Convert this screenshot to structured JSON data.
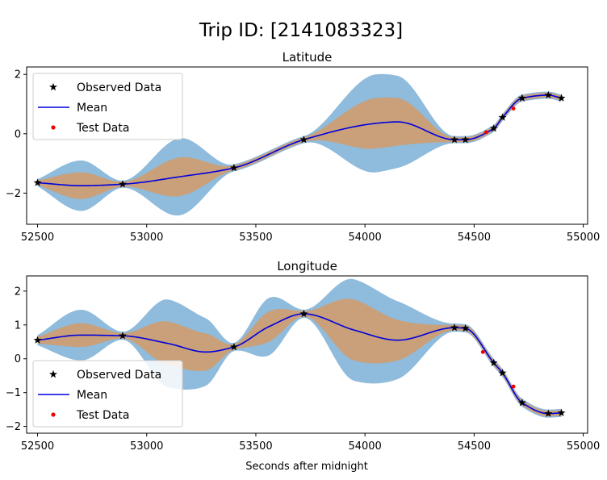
{
  "chart_data": {
    "suptitle": "Trip ID: [2141083323]",
    "xlabel": "Seconds after midnight",
    "colors": {
      "band_outer": "#8fbbdc",
      "band_inner": "#c9a07a",
      "mean": "#0000dd",
      "observed": "#000000",
      "test": "#ee0000"
    },
    "legend": {
      "observed": "Observed Data",
      "mean": "Mean",
      "test": "Test Data"
    },
    "charts": [
      {
        "type": "line",
        "title": "Latitude",
        "xlim": [
          52450,
          55020
        ],
        "ylim": [
          -3.05,
          2.25
        ],
        "xticks": [
          52500,
          53000,
          53500,
          54000,
          54500,
          55000
        ],
        "yticks": [
          -2,
          0,
          2
        ],
        "legend_position": "top-left",
        "x": [
          52500,
          52700,
          52890,
          53150,
          53400,
          53720,
          54050,
          54150,
          54410,
          54460,
          54590,
          54630,
          54720,
          54840,
          54900
        ],
        "mean": [
          -1.65,
          -1.75,
          -1.7,
          -1.45,
          -1.15,
          -0.2,
          0.35,
          0.4,
          -0.2,
          -0.2,
          0.18,
          0.55,
          1.2,
          1.3,
          1.2
        ],
        "inner_halfwidth": [
          0.08,
          0.45,
          0.08,
          0.65,
          0.08,
          0.08,
          0.85,
          0.8,
          0.08,
          0.08,
          0.08,
          0.08,
          0.08,
          0.08,
          0.08
        ],
        "outer_halfwidth": [
          0.12,
          0.85,
          0.12,
          1.3,
          0.12,
          0.12,
          1.65,
          1.55,
          0.12,
          0.12,
          0.12,
          0.12,
          0.12,
          0.12,
          0.12
        ],
        "observed_x": [
          52500,
          52890,
          53400,
          53720,
          54410,
          54460,
          54590,
          54630,
          54720,
          54840,
          54900
        ],
        "observed_y": [
          -1.65,
          -1.7,
          -1.15,
          -0.2,
          -0.2,
          -0.2,
          0.18,
          0.55,
          1.2,
          1.3,
          1.2
        ],
        "test_x": [
          54555,
          54680
        ],
        "test_y": [
          0.05,
          0.85
        ]
      },
      {
        "type": "line",
        "title": "Longitude",
        "xlim": [
          52450,
          55020
        ],
        "ylim": [
          -2.2,
          2.45
        ],
        "xticks": [
          52500,
          53000,
          53500,
          54000,
          54500,
          55000
        ],
        "yticks": [
          -2,
          -1,
          0,
          1,
          2
        ],
        "legend_position": "bottom-left",
        "x": [
          52500,
          52700,
          52890,
          53100,
          53270,
          53400,
          53560,
          53720,
          53950,
          54150,
          54410,
          54460,
          54590,
          54630,
          54720,
          54840,
          54900
        ],
        "mean": [
          0.55,
          0.7,
          0.68,
          0.45,
          0.2,
          0.35,
          0.95,
          1.33,
          0.85,
          0.55,
          0.92,
          0.9,
          -0.12,
          -0.42,
          -1.3,
          -1.62,
          -1.6
        ],
        "inner_halfwidth": [
          0.1,
          0.35,
          0.08,
          0.65,
          0.55,
          0.08,
          0.45,
          0.08,
          0.9,
          0.6,
          0.08,
          0.08,
          0.08,
          0.08,
          0.08,
          0.08,
          0.08
        ],
        "outer_halfwidth": [
          0.15,
          0.75,
          0.12,
          1.3,
          1.0,
          0.12,
          0.85,
          0.12,
          1.5,
          1.15,
          0.12,
          0.12,
          0.12,
          0.12,
          0.12,
          0.12,
          0.12
        ],
        "observed_x": [
          52500,
          52890,
          53400,
          53720,
          54410,
          54460,
          54590,
          54630,
          54720,
          54840,
          54900
        ],
        "observed_y": [
          0.55,
          0.68,
          0.35,
          1.33,
          0.92,
          0.9,
          -0.12,
          -0.42,
          -1.3,
          -1.62,
          -1.6
        ],
        "test_x": [
          54540,
          54680
        ],
        "test_y": [
          0.2,
          -0.82
        ]
      }
    ]
  }
}
